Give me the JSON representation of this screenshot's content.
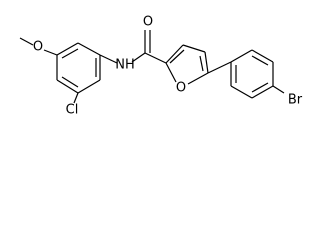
{
  "atoms": [
    {
      "label": "O"
    },
    {
      "label": "Cl"
    },
    {
      "label": "NH"
    },
    {
      "label": "O"
    },
    {
      "label": "O"
    },
    {
      "label": "Br"
    }
  ]
}
